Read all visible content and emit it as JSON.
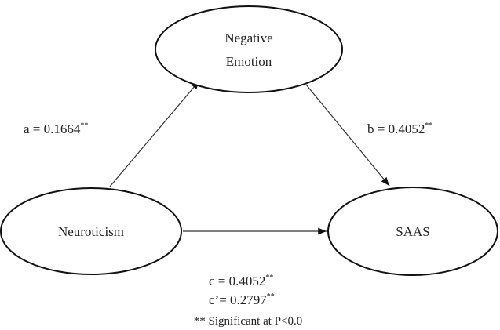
{
  "nodes": [
    {
      "label": [
        "Negative",
        "Emotion"
      ]
    },
    {
      "label": [
        "Neuroticism"
      ]
    },
    {
      "label": [
        "SAAS"
      ]
    }
  ],
  "paths": [
    {
      "text": "a = 0.1664",
      "sup": "**"
    },
    {
      "text": "b = 0.4052",
      "sup": "**"
    },
    {
      "text": "c = 0.4052",
      "sup": "**"
    },
    {
      "text": "c’= 0.2797",
      "sup": "**"
    }
  ],
  "footnote": "** Significant at P<0.0"
}
